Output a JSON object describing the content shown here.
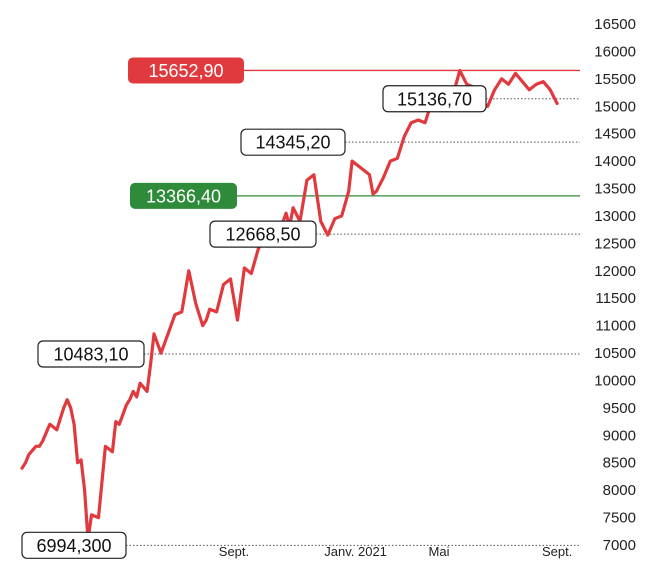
{
  "chart_data": {
    "type": "line",
    "title": "",
    "xlabel": "",
    "ylabel": "",
    "ylim": [
      7000,
      16500
    ],
    "y_ticks": [
      7000,
      7500,
      8000,
      8500,
      9000,
      9500,
      10000,
      10500,
      11000,
      11500,
      12000,
      12500,
      13000,
      13500,
      14000,
      14500,
      15000,
      15500,
      16000,
      16500
    ],
    "x_ticks": [
      {
        "label": "Mai",
        "x": 13
      },
      {
        "label": "Sept.",
        "x": 30.5
      },
      {
        "label": "Janv. 2021",
        "x": 48
      },
      {
        "label": "Mai",
        "x": 60
      },
      {
        "label": "Sept.",
        "x": 77
      }
    ],
    "x_range": [
      0,
      80
    ],
    "grid": false,
    "line_color": "#e03a3e",
    "series": [
      {
        "x": [
          0,
          0.5,
          1,
          2,
          2.5,
          3,
          4,
          5,
          6,
          6.5,
          7,
          7.5,
          8,
          8.5,
          9,
          9.5,
          10,
          11,
          12,
          12.5,
          13,
          13.5,
          14,
          15,
          15.5,
          16,
          16.5,
          17,
          18,
          18.5,
          19,
          20,
          21,
          22,
          23,
          24,
          25,
          26,
          26.5,
          27,
          28,
          29,
          30,
          31,
          32,
          33,
          34,
          35,
          36,
          37,
          38,
          38.5,
          39,
          40,
          41,
          42,
          43,
          44,
          45,
          46,
          47,
          47.5,
          48,
          49,
          50,
          50.5,
          51,
          52,
          53,
          54,
          55,
          56,
          57,
          58,
          59,
          60,
          60.5,
          61,
          62,
          63,
          64,
          65,
          66,
          67,
          68,
          69,
          70,
          71,
          72,
          73,
          74,
          75,
          76,
          77
        ],
        "values": [
          8400,
          8500,
          8650,
          8800,
          8800,
          8900,
          9200,
          9100,
          9500,
          9650,
          9500,
          9200,
          8500,
          8550,
          8000,
          7100,
          7550,
          7500,
          8800,
          8750,
          8700,
          9250,
          9200,
          9550,
          9650,
          9800,
          9700,
          9950,
          9800,
          10300,
          10850,
          10500,
          10850,
          11200,
          11250,
          12000,
          11400,
          11000,
          11100,
          11300,
          11250,
          11750,
          11850,
          11100,
          12050,
          11950,
          12400,
          12600,
          12850,
          12700,
          13050,
          12800,
          13150,
          12900,
          13650,
          13750,
          12900,
          12650,
          12950,
          13000,
          13450,
          14000,
          13950,
          13850,
          13750,
          13400,
          13450,
          13700,
          14000,
          14050,
          14450,
          14700,
          14750,
          14700,
          15100,
          15000,
          15150,
          15150,
          15200,
          15650,
          15400,
          15350,
          15050,
          15000,
          15300,
          15500,
          15400,
          15600,
          15450,
          15300,
          15400,
          15450,
          15300,
          15050
        ]
      }
    ],
    "annotations": [
      {
        "text": "15652,90",
        "value": 15652.9,
        "style": "red",
        "line": "solid-red"
      },
      {
        "text": "15136,70",
        "value": 15136.7,
        "style": "outline",
        "line": "dotted"
      },
      {
        "text": "14345,20",
        "value": 14345.2,
        "style": "outline",
        "line": "dotted"
      },
      {
        "text": "13366,40",
        "value": 13366.4,
        "style": "green",
        "line": "solid-green"
      },
      {
        "text": "12668,50",
        "value": 12668.5,
        "style": "outline",
        "line": "dotted"
      },
      {
        "text": "10483,10",
        "value": 10483.1,
        "style": "outline",
        "line": "dotted"
      },
      {
        "text": "6994,300",
        "value": 6994.3,
        "style": "outline",
        "line": "dotted"
      }
    ],
    "colors": {
      "red": "#e03a3e",
      "green": "#2e8b3a",
      "outline": "#222222"
    }
  }
}
